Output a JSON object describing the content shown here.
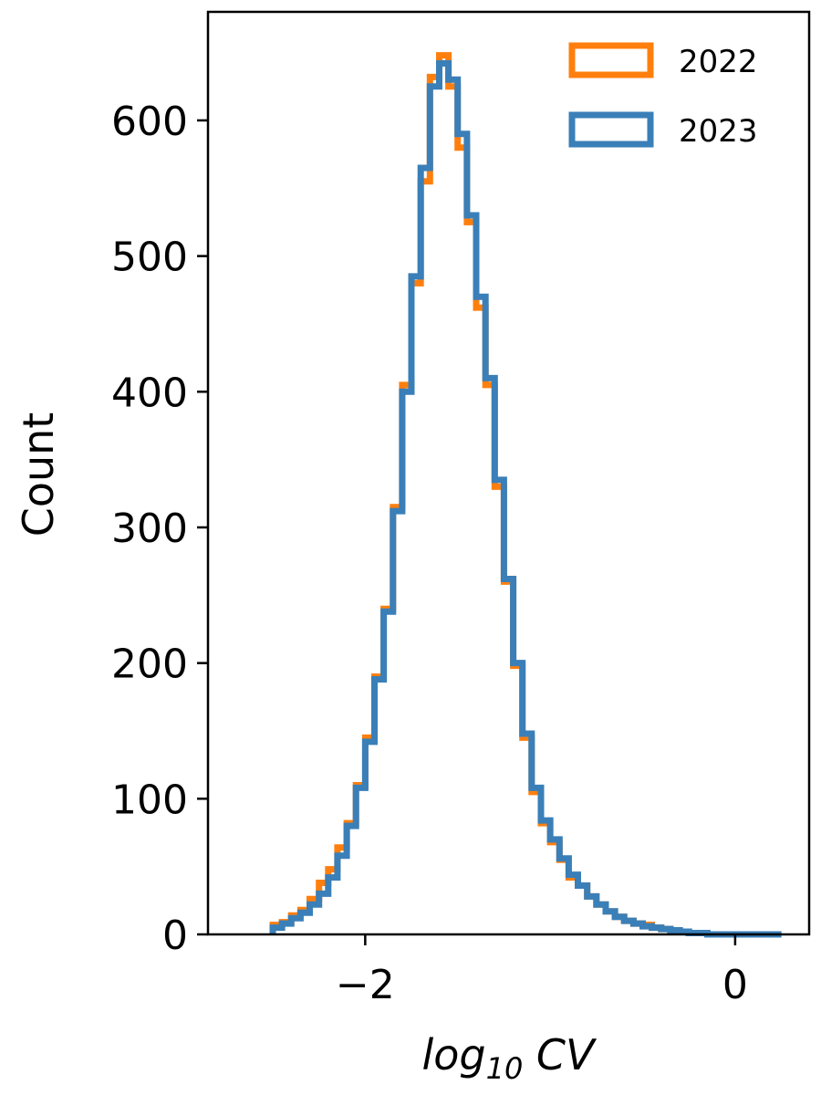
{
  "chart_data": {
    "type": "histogram",
    "xlabel_base": "log",
    "xlabel_sub": "10",
    "xlabel_rest": " CV",
    "ylabel": "Count",
    "xlim": [
      -2.85,
      0.4
    ],
    "ylim": [
      0,
      680
    ],
    "x_ticks": [
      {
        "value": -2,
        "label": "−2"
      },
      {
        "value": 0,
        "label": "0"
      }
    ],
    "y_ticks": [
      {
        "value": 0,
        "label": "0"
      },
      {
        "value": 100,
        "label": "100"
      },
      {
        "value": 200,
        "label": "200"
      },
      {
        "value": 300,
        "label": "300"
      },
      {
        "value": 400,
        "label": "400"
      },
      {
        "value": 500,
        "label": "500"
      },
      {
        "value": 600,
        "label": "600"
      }
    ],
    "grid": false,
    "legend_position": "top-right",
    "series": [
      {
        "name": "2022",
        "color": "#ff7f0e",
        "bin_edges": [
          -2.5,
          -2.45,
          -2.4,
          -2.35,
          -2.3,
          -2.25,
          -2.2,
          -2.15,
          -2.1,
          -2.05,
          -2.0,
          -1.95,
          -1.9,
          -1.85,
          -1.8,
          -1.75,
          -1.7,
          -1.65,
          -1.6,
          -1.55,
          -1.5,
          -1.45,
          -1.4,
          -1.35,
          -1.3,
          -1.25,
          -1.2,
          -1.15,
          -1.1,
          -1.05,
          -1.0,
          -0.95,
          -0.9,
          -0.85,
          -0.8,
          -0.75,
          -0.7,
          -0.65,
          -0.6,
          -0.55,
          -0.5,
          -0.45,
          -0.4,
          -0.35,
          -0.3,
          -0.25,
          -0.2,
          -0.15,
          -0.1,
          -0.05,
          0.0,
          0.05,
          0.1,
          0.15,
          0.2,
          0.25
        ],
        "counts": [
          7,
          9,
          14,
          18,
          26,
          38,
          48,
          64,
          82,
          110,
          145,
          190,
          240,
          315,
          405,
          480,
          555,
          632,
          648,
          625,
          580,
          525,
          462,
          405,
          330,
          260,
          198,
          145,
          105,
          82,
          68,
          55,
          42,
          36,
          28,
          22,
          17,
          13,
          10,
          8,
          7,
          5,
          4,
          3,
          2,
          1,
          1,
          0,
          0,
          0,
          0,
          0,
          0,
          0,
          0
        ]
      },
      {
        "name": "2023",
        "color": "#3a7fb8",
        "bin_edges": [
          -2.5,
          -2.45,
          -2.4,
          -2.35,
          -2.3,
          -2.25,
          -2.2,
          -2.15,
          -2.1,
          -2.05,
          -2.0,
          -1.95,
          -1.9,
          -1.85,
          -1.8,
          -1.75,
          -1.7,
          -1.65,
          -1.6,
          -1.55,
          -1.5,
          -1.45,
          -1.4,
          -1.35,
          -1.3,
          -1.25,
          -1.2,
          -1.15,
          -1.1,
          -1.05,
          -1.0,
          -0.95,
          -0.9,
          -0.85,
          -0.8,
          -0.75,
          -0.7,
          -0.65,
          -0.6,
          -0.55,
          -0.5,
          -0.45,
          -0.4,
          -0.35,
          -0.3,
          -0.25,
          -0.2,
          -0.15,
          -0.1,
          -0.05,
          0.0,
          0.05,
          0.1,
          0.15,
          0.2,
          0.25
        ],
        "counts": [
          5,
          8,
          12,
          16,
          22,
          30,
          42,
          58,
          80,
          108,
          142,
          188,
          238,
          312,
          400,
          485,
          565,
          625,
          642,
          630,
          590,
          530,
          470,
          410,
          335,
          262,
          200,
          148,
          108,
          84,
          70,
          56,
          44,
          36,
          28,
          22,
          17,
          13,
          10,
          8,
          6,
          5,
          4,
          3,
          2,
          1,
          1,
          0,
          0,
          0,
          0,
          0,
          0,
          0,
          0
        ]
      }
    ]
  }
}
